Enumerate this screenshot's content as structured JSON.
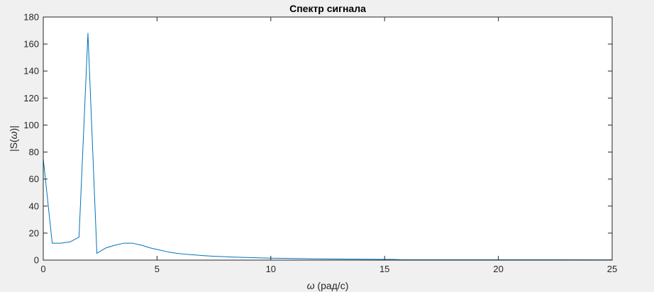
{
  "chart_data": {
    "type": "line",
    "title": "Спектр сигнала",
    "xlabel_symbol": "ω",
    "xlabel_rest": " (рад/с)",
    "ylabel_pre": "|S(",
    "ylabel_symbol": "ω",
    "ylabel_post": ")|",
    "xlim": [
      0,
      25
    ],
    "ylim": [
      0,
      180
    ],
    "xticks": [
      0,
      5,
      10,
      15,
      20,
      25
    ],
    "yticks": [
      0,
      20,
      40,
      60,
      80,
      100,
      120,
      140,
      160,
      180
    ],
    "grid": false,
    "series": [
      {
        "color": "#0072bd",
        "x": [
          0,
          0.393,
          0.785,
          1.178,
          1.571,
          1.963,
          2.356,
          2.749,
          3.142,
          3.534,
          3.927,
          4.32,
          4.712,
          5.105,
          5.498,
          5.89,
          6.283,
          6.676,
          7.069,
          7.461,
          7.854,
          8.247,
          8.639,
          9.032,
          9.425,
          9.817,
          10.21,
          10.6,
          11.0,
          11.39,
          11.78,
          12.17,
          12.57,
          12.96,
          13.35,
          13.74,
          14.14,
          14.53,
          14.92,
          15.32,
          15.71,
          25
        ],
        "y": [
          75,
          12.5,
          12.5,
          13.5,
          17,
          168,
          5,
          9,
          11,
          12.5,
          12.5,
          11,
          9,
          7.5,
          6,
          5,
          4.3,
          3.8,
          3.3,
          2.9,
          2.6,
          2.3,
          2.1,
          1.9,
          1.7,
          1.5,
          1.4,
          1.3,
          1.2,
          1.1,
          1.0,
          0.9,
          0.85,
          0.8,
          0.75,
          0.7,
          0.65,
          0.6,
          0.55,
          0.5,
          0.3,
          0.2
        ]
      }
    ]
  }
}
